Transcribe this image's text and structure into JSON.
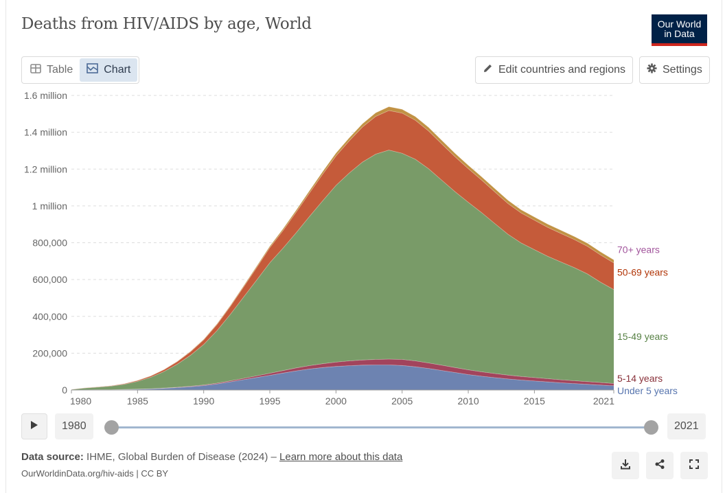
{
  "title": "Deaths from HIV/AIDS by age, World",
  "logo": {
    "line1": "Our World",
    "line2": "in Data"
  },
  "tabs": [
    {
      "label": "Table",
      "icon": "table-icon",
      "active": false
    },
    {
      "label": "Chart",
      "icon": "chart-icon",
      "active": true
    }
  ],
  "controls": {
    "edit_label": "Edit countries and regions",
    "settings_label": "Settings"
  },
  "timeline": {
    "start_year": "1980",
    "end_year": "2021"
  },
  "footer": {
    "source_label": "Data source:",
    "source_text": "IHME, Global Burden of Disease (2024) –",
    "learn_more": "Learn more about this data",
    "url_text": "OurWorldinData.org/hiv-aids | CC BY"
  },
  "colors": {
    "brand": "#002147",
    "brand_accent": "#ce261e",
    "tab_active_bg": "#dbe5f0"
  },
  "chart_data": {
    "type": "area",
    "stacked": true,
    "title": "Deaths from HIV/AIDS by age, World",
    "x": [
      1980,
      1981,
      1982,
      1983,
      1984,
      1985,
      1986,
      1987,
      1988,
      1989,
      1990,
      1991,
      1992,
      1993,
      1994,
      1995,
      1996,
      1997,
      1998,
      1999,
      2000,
      2001,
      2002,
      2003,
      2004,
      2005,
      2006,
      2007,
      2008,
      2009,
      2010,
      2011,
      2012,
      2013,
      2014,
      2015,
      2016,
      2017,
      2018,
      2019,
      2020,
      2021
    ],
    "xticks": [
      1980,
      1985,
      1990,
      1995,
      2000,
      2005,
      2010,
      2015,
      2021
    ],
    "ylim": [
      0,
      1600000
    ],
    "yticks": [
      {
        "value": 0,
        "label": "0"
      },
      {
        "value": 200000,
        "label": "200,000"
      },
      {
        "value": 400000,
        "label": "400,000"
      },
      {
        "value": 600000,
        "label": "600,000"
      },
      {
        "value": 800000,
        "label": "800,000"
      },
      {
        "value": 1000000,
        "label": "1 million"
      },
      {
        "value": 1200000,
        "label": "1.2 million"
      },
      {
        "value": 1400000,
        "label": "1.4 million"
      },
      {
        "value": 1600000,
        "label": "1.6 million"
      }
    ],
    "grid": true,
    "legend": "inline-right",
    "series": [
      {
        "name": "Under 5 years",
        "color": "#6d83b1",
        "label_color": "#5674ae",
        "values": [
          0,
          500,
          1000,
          1500,
          2500,
          4000,
          6000,
          9000,
          13000,
          18000,
          24000,
          33000,
          44000,
          56000,
          68000,
          80000,
          92000,
          104000,
          114000,
          122000,
          128000,
          132000,
          135000,
          136000,
          136000,
          133000,
          126000,
          117000,
          106000,
          95000,
          84000,
          75000,
          67000,
          60000,
          54000,
          49000,
          44000,
          39000,
          35000,
          31000,
          27000,
          23000
        ]
      },
      {
        "name": "5-14 years",
        "color": "#a2445c",
        "label_color": "#883039",
        "values": [
          0,
          100,
          200,
          300,
          400,
          600,
          900,
          1300,
          1800,
          2500,
          3300,
          4300,
          5600,
          7000,
          8800,
          11000,
          13500,
          16000,
          18500,
          21000,
          23500,
          26000,
          28000,
          30000,
          32000,
          33000,
          32000,
          30000,
          28500,
          27000,
          25500,
          24000,
          22500,
          21000,
          19500,
          18500,
          17500,
          16500,
          15500,
          14500,
          13500,
          12500
        ]
      },
      {
        "name": "15-49 years",
        "color": "#799b68",
        "label_color": "#578145",
        "values": [
          3000,
          10000,
          14000,
          19000,
          28000,
          42000,
          62000,
          90000,
          125000,
          168000,
          220000,
          285000,
          360000,
          440000,
          520000,
          600000,
          665000,
          735000,
          810000,
          885000,
          960000,
          1020000,
          1075000,
          1115000,
          1135000,
          1120000,
          1095000,
          1055000,
          1005000,
          955000,
          910000,
          865000,
          815000,
          765000,
          725000,
          695000,
          665000,
          640000,
          615000,
          585000,
          545000,
          510000
        ]
      },
      {
        "name": "50-69 years",
        "color": "#c55b3a",
        "label_color": "#b13507",
        "values": [
          800,
          1500,
          2000,
          2600,
          3500,
          5000,
          7000,
          10000,
          14000,
          19000,
          25000,
          33000,
          43000,
          55000,
          68000,
          82000,
          96000,
          112000,
          128000,
          145000,
          160000,
          175000,
          190000,
          205000,
          215000,
          218000,
          212000,
          205000,
          197000,
          190000,
          183000,
          177000,
          172000,
          167000,
          163000,
          160000,
          157000,
          155000,
          152000,
          150000,
          148000,
          145000
        ]
      },
      {
        "name": "70+ years",
        "color": "#c19244",
        "label_color": "#a2559c",
        "values": [
          200,
          300,
          400,
          500,
          700,
          900,
          1200,
          1600,
          2100,
          2700,
          3400,
          4200,
          5100,
          6100,
          7200,
          8400,
          9600,
          11000,
          12500,
          14000,
          15500,
          17000,
          18500,
          20000,
          21000,
          21000,
          20500,
          20000,
          19500,
          19000,
          18500,
          18200,
          18000,
          17800,
          17600,
          17500,
          17400,
          17300,
          17200,
          17100,
          17000,
          16500
        ]
      }
    ]
  }
}
